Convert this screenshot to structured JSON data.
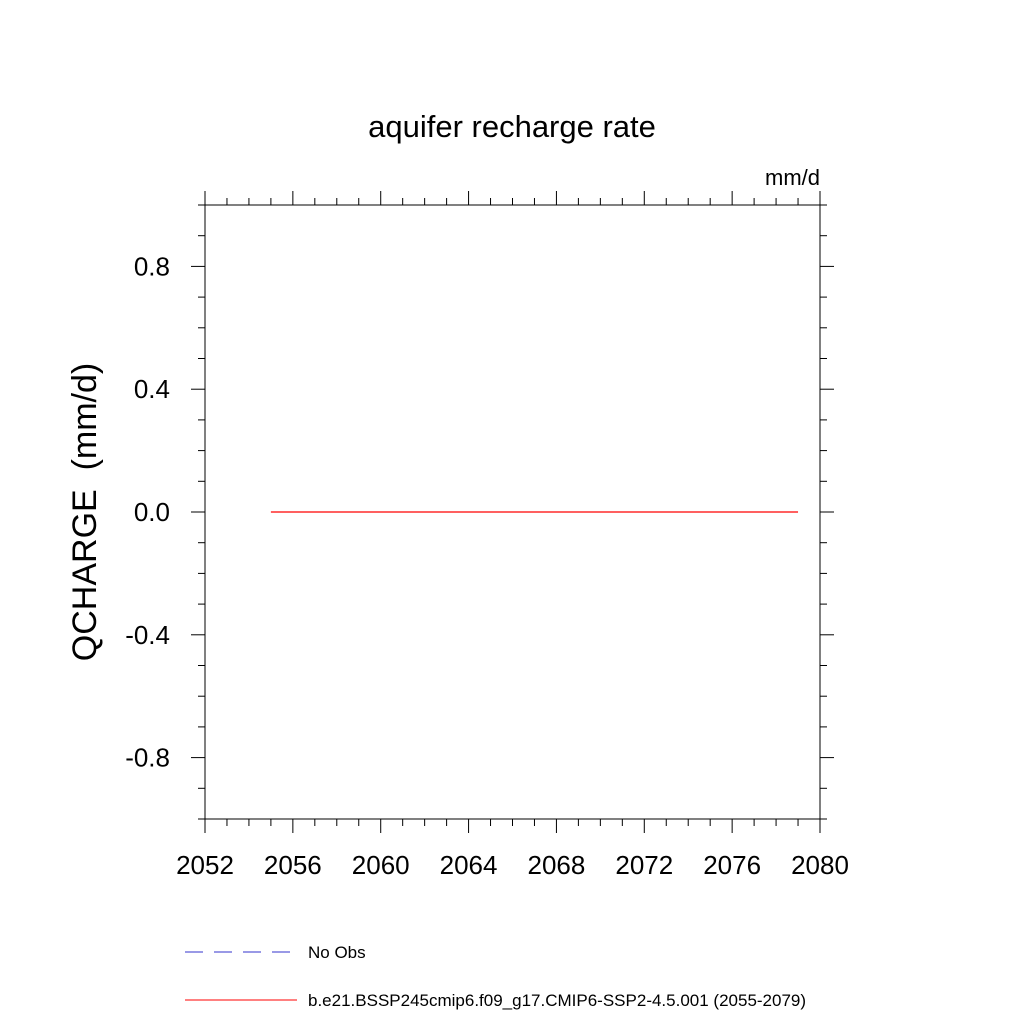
{
  "chart_data": {
    "type": "line",
    "title": "aquifer recharge rate",
    "units": "mm/d",
    "ylabel": "QCHARGE  (mm/d)",
    "xlabel": "",
    "xlim": [
      2052,
      2080
    ],
    "ylim": [
      -1.0,
      1.0
    ],
    "x_ticks": [
      2052,
      2056,
      2060,
      2064,
      2068,
      2072,
      2076,
      2080
    ],
    "y_ticks": [
      0.8,
      0.4,
      0.0,
      -0.4,
      -0.8
    ],
    "y_tick_labels": [
      "0.8",
      "0.4",
      "0.0",
      "-0.4",
      "-0.8"
    ],
    "grid": false,
    "legend_position": "bottom",
    "series": [
      {
        "name": "b.e21.BSSP245cmip6.f09_g17.CMIP6-SSP2-4.5.001 (2055-2079)",
        "color": "#ff0000",
        "dash": "solid",
        "x": [
          2055,
          2056,
          2057,
          2058,
          2059,
          2060,
          2061,
          2062,
          2063,
          2064,
          2065,
          2066,
          2067,
          2068,
          2069,
          2070,
          2071,
          2072,
          2073,
          2074,
          2075,
          2076,
          2077,
          2078,
          2079
        ],
        "y": [
          0,
          0,
          0,
          0,
          0,
          0,
          0,
          0,
          0,
          0,
          0,
          0,
          0,
          0,
          0,
          0,
          0,
          0,
          0,
          0,
          0,
          0,
          0,
          0,
          0
        ]
      }
    ],
    "legend": [
      {
        "label": "No Obs",
        "color": "#3333cc",
        "dash": "dashed"
      },
      {
        "label": "b.e21.BSSP245cmip6.f09_g17.CMIP6-SSP2-4.5.001 (2055-2079)",
        "color": "#ff0000",
        "dash": "solid"
      }
    ]
  }
}
